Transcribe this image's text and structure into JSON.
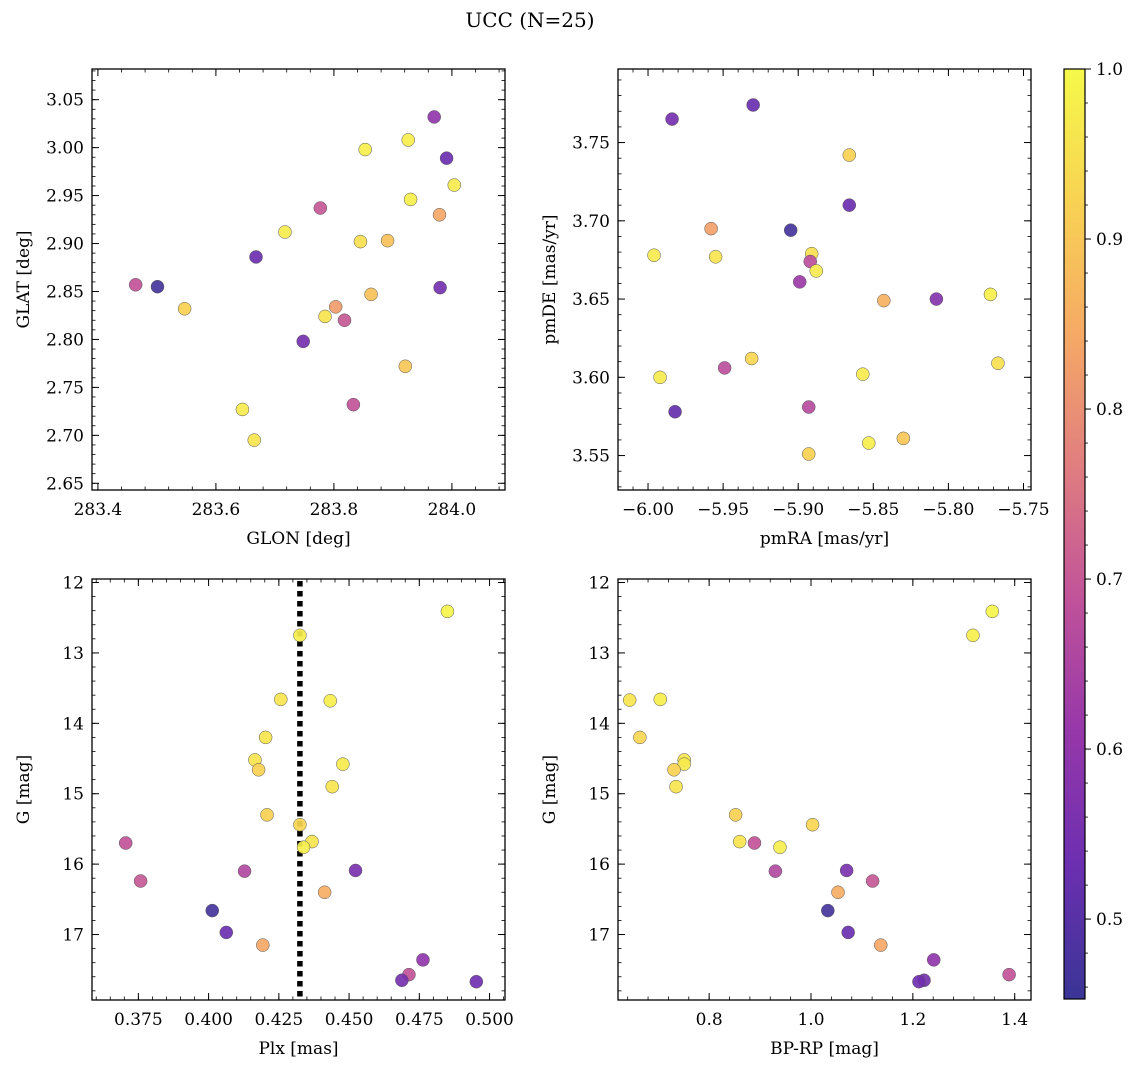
{
  "title": "UCC (N=25)",
  "colormap": {
    "name": "plasma",
    "min": 0.453,
    "max": 1.0,
    "stops": [
      "#3a3596",
      "#6b2fb0",
      "#9637aa",
      "#c0529a",
      "#e07d80",
      "#f6a965",
      "#f8d253",
      "#f5f94a"
    ]
  },
  "colorbar_ticks": [
    {
      "value": 0.5,
      "label": "0.5"
    },
    {
      "value": 0.6,
      "label": "0.6"
    },
    {
      "value": 0.7,
      "label": "0.7"
    },
    {
      "value": 0.8,
      "label": "0.8"
    },
    {
      "value": 0.9,
      "label": "0.9"
    },
    {
      "value": 1.0,
      "label": "1.0"
    }
  ],
  "chart_data": [
    {
      "type": "scatter",
      "xlabel": "GLON [deg]",
      "ylabel": "GLAT [deg]",
      "xlim": [
        283.39,
        284.09
      ],
      "ylim": [
        2.643,
        3.082
      ],
      "xticks": [
        {
          "v": 283.4,
          "l": "283.4"
        },
        {
          "v": 283.6,
          "l": "283.6"
        },
        {
          "v": 283.8,
          "l": "283.8"
        },
        {
          "v": 284.0,
          "l": "284.0"
        }
      ],
      "yticks": [
        {
          "v": 2.65,
          "l": "2.65"
        },
        {
          "v": 2.7,
          "l": "2.70"
        },
        {
          "v": 2.75,
          "l": "2.75"
        },
        {
          "v": 2.8,
          "l": "2.80"
        },
        {
          "v": 2.85,
          "l": "2.85"
        },
        {
          "v": 2.9,
          "l": "2.90"
        },
        {
          "v": 2.95,
          "l": "2.95"
        },
        {
          "v": 3.0,
          "l": "3.00"
        },
        {
          "v": 3.05,
          "l": "3.05"
        }
      ],
      "points": [
        {
          "x": 283.464,
          "y": 2.857,
          "c": 0.69
        },
        {
          "x": 283.501,
          "y": 2.855,
          "c": 0.47
        },
        {
          "x": 283.547,
          "y": 2.832,
          "c": 0.92
        },
        {
          "x": 283.645,
          "y": 2.727,
          "c": 0.97
        },
        {
          "x": 283.665,
          "y": 2.695,
          "c": 0.96
        },
        {
          "x": 283.668,
          "y": 2.886,
          "c": 0.53
        },
        {
          "x": 283.717,
          "y": 2.912,
          "c": 0.97
        },
        {
          "x": 283.748,
          "y": 2.798,
          "c": 0.55
        },
        {
          "x": 283.777,
          "y": 2.937,
          "c": 0.7
        },
        {
          "x": 283.785,
          "y": 2.824,
          "c": 0.96
        },
        {
          "x": 283.803,
          "y": 2.834,
          "c": 0.82
        },
        {
          "x": 283.818,
          "y": 2.82,
          "c": 0.7
        },
        {
          "x": 283.833,
          "y": 2.732,
          "c": 0.69
        },
        {
          "x": 283.845,
          "y": 2.902,
          "c": 0.95
        },
        {
          "x": 283.853,
          "y": 2.998,
          "c": 0.98
        },
        {
          "x": 283.863,
          "y": 2.847,
          "c": 0.89
        },
        {
          "x": 283.891,
          "y": 2.903,
          "c": 0.89
        },
        {
          "x": 283.921,
          "y": 2.772,
          "c": 0.9
        },
        {
          "x": 283.926,
          "y": 3.008,
          "c": 0.98
        },
        {
          "x": 283.93,
          "y": 2.946,
          "c": 0.98
        },
        {
          "x": 283.97,
          "y": 3.032,
          "c": 0.6
        },
        {
          "x": 283.979,
          "y": 2.93,
          "c": 0.84
        },
        {
          "x": 283.98,
          "y": 2.854,
          "c": 0.55
        },
        {
          "x": 283.991,
          "y": 2.989,
          "c": 0.53
        },
        {
          "x": 284.004,
          "y": 2.961,
          "c": 0.97
        }
      ]
    },
    {
      "type": "scatter",
      "xlabel": "pmRA [mas/yr]",
      "ylabel": "pmDE [mas/yr]",
      "xlim": [
        -6.02,
        -5.745
      ],
      "ylim": [
        3.528,
        3.797
      ],
      "xticks": [
        {
          "v": -6.0,
          "l": "−6.00"
        },
        {
          "v": -5.95,
          "l": "−5.95"
        },
        {
          "v": -5.9,
          "l": "−5.90"
        },
        {
          "v": -5.85,
          "l": "−5.85"
        },
        {
          "v": -5.8,
          "l": "−5.80"
        },
        {
          "v": -5.75,
          "l": "−5.75"
        }
      ],
      "yticks": [
        {
          "v": 3.55,
          "l": "3.55"
        },
        {
          "v": 3.6,
          "l": "3.60"
        },
        {
          "v": 3.65,
          "l": "3.65"
        },
        {
          "v": 3.7,
          "l": "3.70"
        },
        {
          "v": 3.75,
          "l": "3.75"
        }
      ],
      "points": [
        {
          "x": -5.984,
          "y": 3.765,
          "c": 0.55
        },
        {
          "x": -5.93,
          "y": 3.774,
          "c": 0.53
        },
        {
          "x": -5.866,
          "y": 3.742,
          "c": 0.92
        },
        {
          "x": -5.905,
          "y": 3.694,
          "c": 0.47
        },
        {
          "x": -5.866,
          "y": 3.71,
          "c": 0.53
        },
        {
          "x": -5.958,
          "y": 3.695,
          "c": 0.83
        },
        {
          "x": -5.996,
          "y": 3.678,
          "c": 0.97
        },
        {
          "x": -5.955,
          "y": 3.677,
          "c": 0.96
        },
        {
          "x": -5.891,
          "y": 3.679,
          "c": 0.95
        },
        {
          "x": -5.892,
          "y": 3.674,
          "c": 0.68
        },
        {
          "x": -5.888,
          "y": 3.668,
          "c": 0.97
        },
        {
          "x": -5.899,
          "y": 3.661,
          "c": 0.62
        },
        {
          "x": -5.843,
          "y": 3.649,
          "c": 0.86
        },
        {
          "x": -5.808,
          "y": 3.65,
          "c": 0.58
        },
        {
          "x": -5.772,
          "y": 3.653,
          "c": 0.98
        },
        {
          "x": -5.931,
          "y": 3.612,
          "c": 0.93
        },
        {
          "x": -5.949,
          "y": 3.606,
          "c": 0.68
        },
        {
          "x": -5.992,
          "y": 3.6,
          "c": 0.97
        },
        {
          "x": -5.857,
          "y": 3.602,
          "c": 0.97
        },
        {
          "x": -5.767,
          "y": 3.609,
          "c": 0.95
        },
        {
          "x": -5.982,
          "y": 3.578,
          "c": 0.52
        },
        {
          "x": -5.893,
          "y": 3.581,
          "c": 0.67
        },
        {
          "x": -5.853,
          "y": 3.558,
          "c": 0.98
        },
        {
          "x": -5.83,
          "y": 3.561,
          "c": 0.9
        },
        {
          "x": -5.893,
          "y": 3.551,
          "c": 0.92
        }
      ]
    },
    {
      "type": "scatter",
      "xlabel": "Plx [mas]",
      "ylabel": "G [mag]",
      "xlim": [
        0.3585,
        0.5055
      ],
      "ylim": [
        17.93,
        11.95
      ],
      "inverted_y": true,
      "vline": {
        "x": 0.4325,
        "style": "dotted",
        "color": "#000000"
      },
      "xticks": [
        {
          "v": 0.375,
          "l": "0.375"
        },
        {
          "v": 0.4,
          "l": "0.400"
        },
        {
          "v": 0.425,
          "l": "0.425"
        },
        {
          "v": 0.45,
          "l": "0.450"
        },
        {
          "v": 0.475,
          "l": "0.475"
        },
        {
          "v": 0.5,
          "l": "0.500"
        }
      ],
      "yticks": [
        {
          "v": 12,
          "l": "12"
        },
        {
          "v": 13,
          "l": "13"
        },
        {
          "v": 14,
          "l": "14"
        },
        {
          "v": 15,
          "l": "15"
        },
        {
          "v": 16,
          "l": "16"
        },
        {
          "v": 17,
          "l": "17"
        }
      ],
      "points": [
        {
          "x": 0.485,
          "y": 12.41,
          "c": 0.99
        },
        {
          "x": 0.4325,
          "y": 12.75,
          "c": 0.98
        },
        {
          "x": 0.4257,
          "y": 13.66,
          "c": 0.96
        },
        {
          "x": 0.4433,
          "y": 13.68,
          "c": 0.98
        },
        {
          "x": 0.4203,
          "y": 14.2,
          "c": 0.96
        },
        {
          "x": 0.4165,
          "y": 14.52,
          "c": 0.96
        },
        {
          "x": 0.4178,
          "y": 14.66,
          "c": 0.92
        },
        {
          "x": 0.4478,
          "y": 14.58,
          "c": 0.97
        },
        {
          "x": 0.444,
          "y": 14.9,
          "c": 0.96
        },
        {
          "x": 0.4208,
          "y": 15.3,
          "c": 0.92
        },
        {
          "x": 0.4325,
          "y": 15.44,
          "c": 0.93
        },
        {
          "x": 0.4368,
          "y": 15.68,
          "c": 0.96
        },
        {
          "x": 0.4338,
          "y": 15.76,
          "c": 0.98
        },
        {
          "x": 0.3705,
          "y": 15.7,
          "c": 0.69
        },
        {
          "x": 0.3758,
          "y": 16.24,
          "c": 0.7
        },
        {
          "x": 0.4128,
          "y": 16.1,
          "c": 0.66
        },
        {
          "x": 0.4523,
          "y": 16.09,
          "c": 0.56
        },
        {
          "x": 0.4413,
          "y": 16.4,
          "c": 0.85
        },
        {
          "x": 0.4013,
          "y": 16.66,
          "c": 0.47
        },
        {
          "x": 0.4063,
          "y": 16.97,
          "c": 0.53
        },
        {
          "x": 0.4193,
          "y": 17.15,
          "c": 0.84
        },
        {
          "x": 0.4763,
          "y": 17.36,
          "c": 0.6
        },
        {
          "x": 0.4713,
          "y": 17.57,
          "c": 0.69
        },
        {
          "x": 0.4688,
          "y": 17.65,
          "c": 0.55
        },
        {
          "x": 0.4953,
          "y": 17.67,
          "c": 0.54
        }
      ]
    },
    {
      "type": "scatter",
      "xlabel": "BP-RP [mag]",
      "ylabel": "G [mag]",
      "xlim": [
        0.621,
        1.432
      ],
      "ylim": [
        17.93,
        11.95
      ],
      "inverted_y": true,
      "xticks": [
        {
          "v": 0.8,
          "l": "0.8"
        },
        {
          "v": 1.0,
          "l": "1.0"
        },
        {
          "v": 1.2,
          "l": "1.2"
        },
        {
          "v": 1.4,
          "l": "1.4"
        }
      ],
      "yticks": [
        {
          "v": 12,
          "l": "12"
        },
        {
          "v": 13,
          "l": "13"
        },
        {
          "v": 14,
          "l": "14"
        },
        {
          "v": 15,
          "l": "15"
        },
        {
          "v": 16,
          "l": "16"
        },
        {
          "v": 17,
          "l": "17"
        }
      ],
      "points": [
        {
          "x": 1.356,
          "y": 12.41,
          "c": 0.99
        },
        {
          "x": 1.318,
          "y": 12.75,
          "c": 0.98
        },
        {
          "x": 0.644,
          "y": 13.67,
          "c": 0.96
        },
        {
          "x": 0.704,
          "y": 13.66,
          "c": 0.98
        },
        {
          "x": 0.664,
          "y": 14.2,
          "c": 0.93
        },
        {
          "x": 0.751,
          "y": 14.52,
          "c": 0.96
        },
        {
          "x": 0.751,
          "y": 14.58,
          "c": 0.97
        },
        {
          "x": 0.731,
          "y": 14.66,
          "c": 0.92
        },
        {
          "x": 0.735,
          "y": 14.9,
          "c": 0.96
        },
        {
          "x": 0.852,
          "y": 15.3,
          "c": 0.92
        },
        {
          "x": 1.003,
          "y": 15.44,
          "c": 0.93
        },
        {
          "x": 0.86,
          "y": 15.68,
          "c": 0.96
        },
        {
          "x": 0.889,
          "y": 15.7,
          "c": 0.69
        },
        {
          "x": 0.939,
          "y": 15.76,
          "c": 0.98
        },
        {
          "x": 0.93,
          "y": 16.1,
          "c": 0.66
        },
        {
          "x": 1.07,
          "y": 16.09,
          "c": 0.56
        },
        {
          "x": 1.121,
          "y": 16.24,
          "c": 0.7
        },
        {
          "x": 1.053,
          "y": 16.4,
          "c": 0.85
        },
        {
          "x": 1.033,
          "y": 16.66,
          "c": 0.47
        },
        {
          "x": 1.073,
          "y": 16.97,
          "c": 0.53
        },
        {
          "x": 1.137,
          "y": 17.15,
          "c": 0.84
        },
        {
          "x": 1.241,
          "y": 17.36,
          "c": 0.6
        },
        {
          "x": 1.389,
          "y": 17.57,
          "c": 0.69
        },
        {
          "x": 1.222,
          "y": 17.65,
          "c": 0.55
        },
        {
          "x": 1.212,
          "y": 17.67,
          "c": 0.54
        }
      ]
    }
  ]
}
